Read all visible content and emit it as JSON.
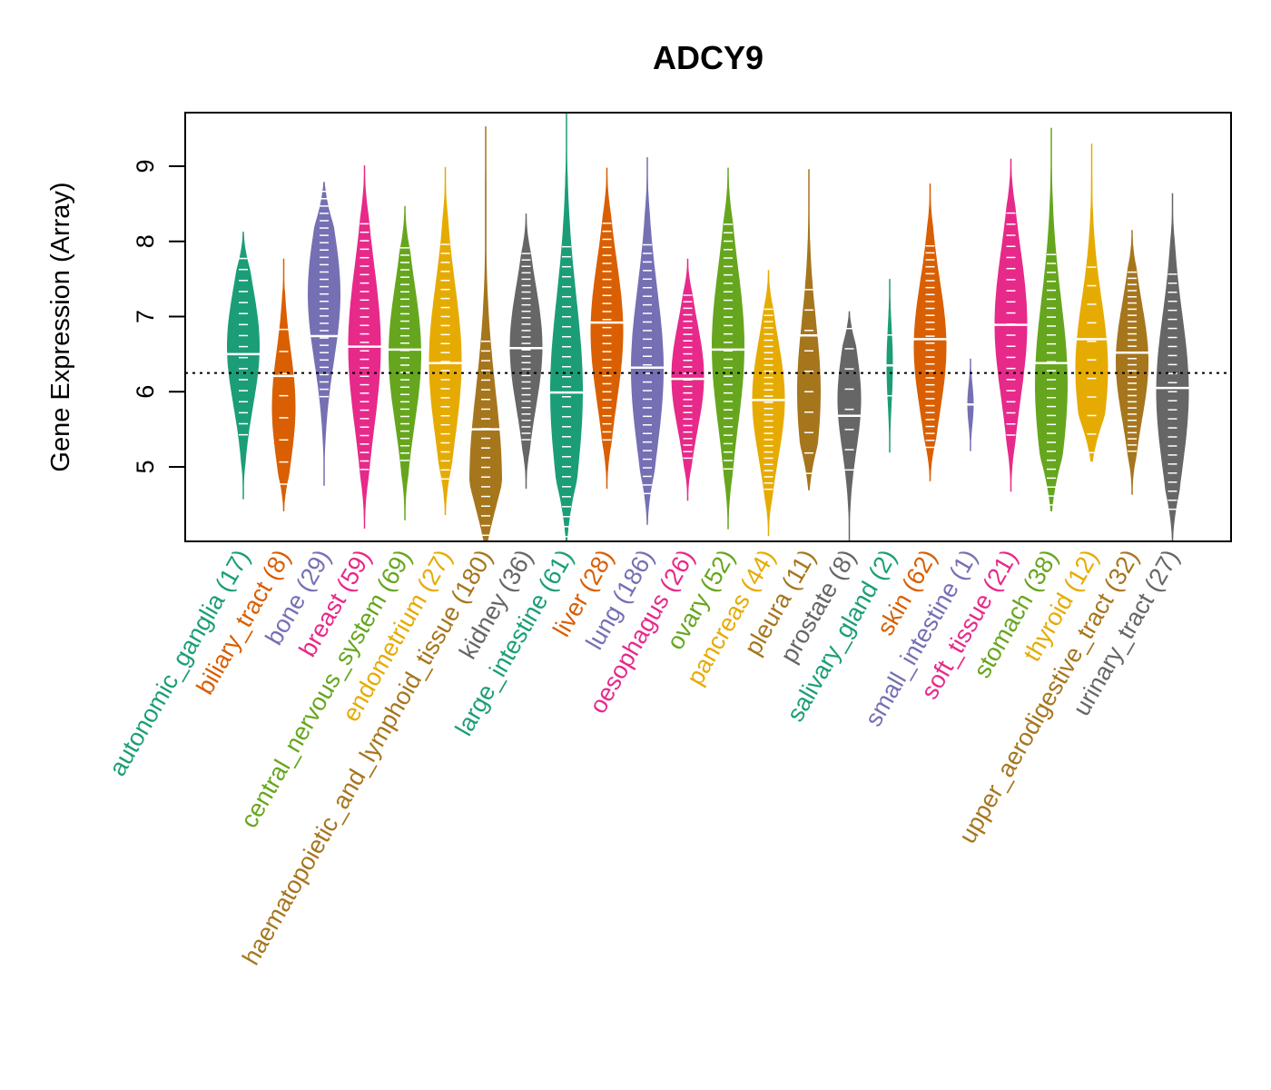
{
  "chart_data": {
    "type": "violin",
    "title": "ADCY9",
    "xlabel": "",
    "ylabel": "Gene Expression (Array)",
    "ylim": [
      4.0,
      9.7
    ],
    "yticks": [
      5,
      6,
      7,
      8,
      9
    ],
    "grid": false,
    "legend": "none",
    "reference_line": {
      "value": 6.25,
      "style": "dotted",
      "color": "#000000"
    },
    "categories": [
      {
        "name": "autonomic_ganglia",
        "n": 17,
        "label": "autonomic_ganglia (17)",
        "color": "#1B9E77",
        "min": 4.57,
        "max": 8.13,
        "median": 6.5,
        "mode": 6.6
      },
      {
        "name": "biliary_tract",
        "n": 8,
        "label": "biliary_tract (8)",
        "color": "#D95F02",
        "min": 4.41,
        "max": 7.77,
        "median": 6.21,
        "mode": 5.8
      },
      {
        "name": "bone",
        "n": 29,
        "label": "bone (29)",
        "color": "#7570B3",
        "min": 4.75,
        "max": 8.79,
        "median": 6.74,
        "mode": 7.3
      },
      {
        "name": "breast",
        "n": 59,
        "label": "breast (59)",
        "color": "#E7298A",
        "min": 4.18,
        "max": 9.01,
        "median": 6.6,
        "mode": 6.6
      },
      {
        "name": "central_nervous_system",
        "n": 69,
        "label": "central_nervous_system (69)",
        "color": "#66A61E",
        "min": 4.29,
        "max": 8.47,
        "median": 6.56,
        "mode": 6.5
      },
      {
        "name": "endometrium",
        "n": 27,
        "label": "endometrium (27)",
        "color": "#E6AB02",
        "min": 4.36,
        "max": 8.99,
        "median": 6.38,
        "mode": 6.4
      },
      {
        "name": "haematopoietic_and_lymphoid_tissue",
        "n": 180,
        "label": "haematopoietic_and_lymphoid_tissue (180)",
        "color": "#A6761D",
        "min": 4.0,
        "max": 9.53,
        "median": 5.5,
        "mode": 4.8
      },
      {
        "name": "kidney",
        "n": 36,
        "label": "kidney (36)",
        "color": "#666666",
        "min": 4.71,
        "max": 8.37,
        "median": 6.58,
        "mode": 6.6
      },
      {
        "name": "large_intestine",
        "n": 61,
        "label": "large_intestine (61)",
        "color": "#1B9E77",
        "min": 4.0,
        "max": 9.7,
        "median": 5.99,
        "mode": 6.0
      },
      {
        "name": "liver",
        "n": 28,
        "label": "liver (28)",
        "color": "#D95F02",
        "min": 4.71,
        "max": 8.98,
        "median": 6.92,
        "mode": 6.8
      },
      {
        "name": "lung",
        "n": 186,
        "label": "lung (186)",
        "color": "#7570B3",
        "min": 4.23,
        "max": 9.12,
        "median": 6.32,
        "mode": 6.3
      },
      {
        "name": "oesophagus",
        "n": 26,
        "label": "oesophagus (26)",
        "color": "#E7298A",
        "min": 4.55,
        "max": 7.77,
        "median": 6.17,
        "mode": 6.2
      },
      {
        "name": "ovary",
        "n": 52,
        "label": "ovary (52)",
        "color": "#66A61E",
        "min": 4.17,
        "max": 8.98,
        "median": 6.56,
        "mode": 6.6
      },
      {
        "name": "pancreas",
        "n": 44,
        "label": "pancreas (44)",
        "color": "#E6AB02",
        "min": 4.08,
        "max": 7.62,
        "median": 5.89,
        "mode": 5.9
      },
      {
        "name": "pleura",
        "n": 11,
        "label": "pleura (11)",
        "color": "#A6761D",
        "min": 4.69,
        "max": 8.96,
        "median": 6.75,
        "mode": 6.0
      },
      {
        "name": "prostate",
        "n": 8,
        "label": "prostate (8)",
        "color": "#666666",
        "min": 4.0,
        "max": 7.07,
        "median": 5.68,
        "mode": 5.9
      },
      {
        "name": "salivary_gland",
        "n": 2,
        "label": "salivary_gland (2)",
        "color": "#1B9E77",
        "min": 5.19,
        "max": 7.5,
        "median": 6.35,
        "mode": 6.35
      },
      {
        "name": "skin",
        "n": 62,
        "label": "skin (62)",
        "color": "#D95F02",
        "min": 4.81,
        "max": 8.77,
        "median": 6.7,
        "mode": 6.6
      },
      {
        "name": "small_intestine",
        "n": 1,
        "label": "small_intestine (1)",
        "color": "#7570B3",
        "min": 5.21,
        "max": 6.44,
        "median": 5.83,
        "mode": 5.83
      },
      {
        "name": "soft_tissue",
        "n": 21,
        "label": "soft_tissue (21)",
        "color": "#E7298A",
        "min": 4.67,
        "max": 9.1,
        "median": 6.89,
        "mode": 6.9
      },
      {
        "name": "stomach",
        "n": 38,
        "label": "stomach (38)",
        "color": "#66A61E",
        "min": 4.41,
        "max": 9.51,
        "median": 6.38,
        "mode": 6.1
      },
      {
        "name": "thyroid",
        "n": 12,
        "label": "thyroid (12)",
        "color": "#E6AB02",
        "min": 5.07,
        "max": 9.3,
        "median": 6.7,
        "mode": 6.3
      },
      {
        "name": "upper_aerodigestive_tract",
        "n": 32,
        "label": "upper_aerodigestive_tract (32)",
        "color": "#A6761D",
        "min": 4.63,
        "max": 8.15,
        "median": 6.52,
        "mode": 6.4
      },
      {
        "name": "urinary_tract",
        "n": 27,
        "label": "urinary_tract (27)",
        "color": "#666666",
        "min": 4.0,
        "max": 8.64,
        "median": 6.05,
        "mode": 6.0
      }
    ]
  }
}
